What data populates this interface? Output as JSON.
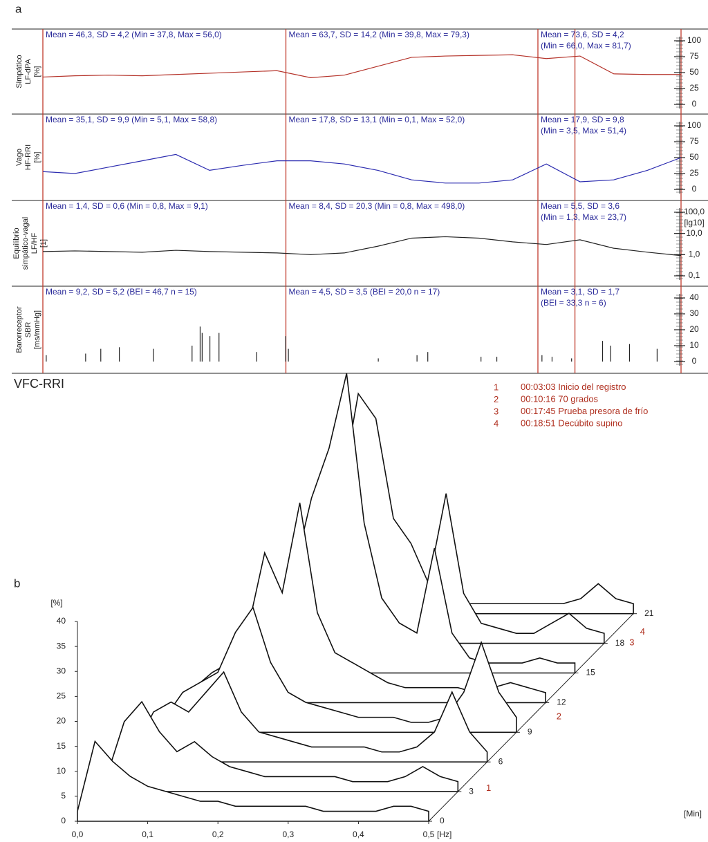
{
  "panel_a_label": "a",
  "panel_b_label": "b",
  "spectrum_title": "VFC-RRI",
  "events": [
    {
      "number": 1,
      "time": "00:03:03",
      "text": "Inicio del registro"
    },
    {
      "number": 2,
      "time": "00:10:16",
      "text": "70 grados"
    },
    {
      "number": 3,
      "time": "00:17:45",
      "text": "Prueba presora de frío"
    },
    {
      "number": 4,
      "time": "00:18:51",
      "text": "Decúbito supino"
    }
  ],
  "chart_data": [
    {
      "type": "line",
      "ylabel": [
        "Simpático",
        "LF-dPA",
        "[%]"
      ],
      "color": "#b5332a",
      "stats": [
        [
          "Mean = 46,3, SD = 4,2 (Min = 37,8, Max = 56,0)"
        ],
        [
          "Mean = 63,7, SD = 14,2 (Min = 39,8, Max = 79,3)"
        ],
        [
          "Mean = 73,6, SD = 4,2",
          "(Min = 66,0, Max = 81,7)"
        ]
      ],
      "xlim": [
        3.05,
        22
      ],
      "x": [
        3,
        4,
        5,
        6,
        7,
        8,
        9,
        10,
        11,
        12,
        13,
        14,
        15,
        16,
        17,
        18,
        19,
        20,
        21,
        22
      ],
      "values": [
        43,
        45,
        46,
        45,
        47,
        49,
        51,
        53,
        42,
        46,
        60,
        74,
        76,
        77,
        78,
        72,
        76,
        48,
        47,
        47
      ],
      "ylim": [
        0,
        100
      ],
      "yticks": [
        0,
        25,
        50,
        75,
        100
      ]
    },
    {
      "type": "line",
      "ylabel": [
        "Vago",
        "HF-RRI",
        "[%]"
      ],
      "color": "#2c2cb0",
      "stats": [
        [
          "Mean = 35,1, SD = 9,9 (Min = 5,1, Max = 58,8)"
        ],
        [
          "Mean = 17,8, SD = 13,1 (Min = 0,1, Max = 52,0)"
        ],
        [
          "Mean = 17,9, SD = 9,8",
          "(Min = 3,5, Max = 51,4)"
        ]
      ],
      "xlim": [
        3.05,
        22
      ],
      "x": [
        3,
        4,
        5,
        6,
        7,
        8,
        9,
        10,
        11,
        12,
        13,
        14,
        15,
        16,
        17,
        18,
        19,
        20,
        21,
        22
      ],
      "values": [
        28,
        25,
        35,
        45,
        55,
        30,
        38,
        45,
        45,
        40,
        30,
        15,
        10,
        10,
        15,
        40,
        12,
        15,
        30,
        50
      ],
      "ylim": [
        0,
        100
      ],
      "yticks": [
        0,
        25,
        50,
        75,
        100
      ]
    },
    {
      "type": "line",
      "log": true,
      "ylabel": [
        "Equilibrio",
        "simpático-vagal",
        "LF/HF",
        "[1]"
      ],
      "yunit": "[lg10]",
      "color": "#222222",
      "stats": [
        [
          "Mean = 1,4, SD = 0,6 (Min = 0,8, Max = 9,1)"
        ],
        [
          "Mean = 8,4, SD = 20,3 (Min = 0,8, Max = 498,0)"
        ],
        [
          "Mean = 5,5, SD = 3,6",
          "(Min = 1,3, Max = 23,7)"
        ]
      ],
      "xlim": [
        3.05,
        22
      ],
      "x": [
        3,
        4,
        5,
        6,
        7,
        8,
        9,
        10,
        11,
        12,
        13,
        14,
        15,
        16,
        17,
        18,
        19,
        20,
        21,
        22
      ],
      "values": [
        1.4,
        1.5,
        1.4,
        1.3,
        1.6,
        1.4,
        1.3,
        1.2,
        1.0,
        1.2,
        2.5,
        6,
        7,
        6,
        4,
        3,
        5,
        2,
        1.3,
        0.9
      ],
      "ylim": [
        0.1,
        100
      ],
      "yticks": [
        {
          "value": 0.1,
          "label": "0,1"
        },
        {
          "value": 1,
          "label": "1,0"
        },
        {
          "value": 10,
          "label": "10,0"
        },
        {
          "value": 100,
          "label": "100,0"
        }
      ]
    },
    {
      "type": "stem",
      "ylabel": [
        "Barorreceptor",
        "SBR",
        "[ms/mmHg]"
      ],
      "color": "#222222",
      "stats": [
        [
          "Mean = 9,2, SD = 5,2 (BEI = 46,7 n = 15)"
        ],
        [
          "Mean = 4,5, SD = 3,5 (BEI = 20,0 n = 17)"
        ],
        [
          "Mean = 3,1, SD = 1,7",
          "(BEI = 33,3 n = 6)"
        ]
      ],
      "xlim": [
        3.05,
        22
      ],
      "x": [
        3.15,
        4.32,
        4.77,
        5.32,
        6.33,
        7.48,
        7.72,
        7.78,
        8.01,
        8.28,
        9.4,
        10.26,
        10.34,
        13.01,
        14.16,
        14.48,
        16.06,
        16.53,
        17.87,
        18.17,
        18.75,
        19.67,
        19.91,
        20.47,
        21.29
      ],
      "values": [
        4,
        5,
        8,
        9,
        8,
        10,
        22,
        18,
        16,
        18,
        6,
        16,
        8,
        2,
        4,
        6,
        3,
        3,
        4,
        3,
        2,
        13,
        10,
        11,
        8
      ],
      "ylim": [
        0,
        40
      ],
      "yticks": [
        0,
        10,
        20,
        30,
        40
      ]
    },
    {
      "type": "waterfall",
      "xlabel": "[Hz]",
      "ylabel": "[%]",
      "zlabel": "[Min]",
      "x": [
        0,
        0.025,
        0.05,
        0.075,
        0.1,
        0.125,
        0.15,
        0.175,
        0.2,
        0.225,
        0.25,
        0.275,
        0.3,
        0.325,
        0.35,
        0.375,
        0.4,
        0.425,
        0.45,
        0.475,
        0.5
      ],
      "xlim": [
        0,
        0.5
      ],
      "xticks": [
        {
          "value": 0,
          "label": "0,0"
        },
        {
          "value": 0.1,
          "label": "0,1"
        },
        {
          "value": 0.2,
          "label": "0,2"
        },
        {
          "value": 0.3,
          "label": "0,3"
        },
        {
          "value": 0.4,
          "label": "0,4"
        },
        {
          "value": 0.5,
          "label": "0,5"
        }
      ],
      "ylim": [
        0,
        40
      ],
      "yticks": [
        0,
        5,
        10,
        15,
        20,
        25,
        30,
        35,
        40
      ],
      "zticks": [
        0,
        3,
        6,
        9,
        12,
        15,
        18,
        21
      ],
      "series": [
        {
          "time": 0,
          "values": [
            2,
            16,
            12,
            9,
            7,
            6,
            5,
            4,
            4,
            3,
            3,
            3,
            3,
            3,
            2,
            2,
            2,
            2,
            3,
            3,
            2
          ]
        },
        {
          "time": 3,
          "values": [
            3,
            14,
            18,
            12,
            8,
            10,
            7,
            5,
            4,
            3,
            3,
            3,
            3,
            3,
            2,
            2,
            2,
            3,
            5,
            3,
            2
          ]
        },
        {
          "time": 6,
          "values": [
            3,
            10,
            12,
            10,
            14,
            18,
            10,
            6,
            5,
            4,
            3,
            3,
            3,
            3,
            2,
            2,
            3,
            6,
            14,
            6,
            2
          ]
        },
        {
          "time": 9,
          "values": [
            3,
            8,
            10,
            12,
            20,
            25,
            14,
            8,
            6,
            5,
            4,
            3,
            3,
            3,
            2,
            2,
            3,
            8,
            18,
            8,
            3
          ]
        },
        {
          "time": 12,
          "values": [
            3,
            6,
            8,
            14,
            30,
            22,
            40,
            18,
            10,
            8,
            6,
            4,
            3,
            3,
            3,
            3,
            2,
            3,
            4,
            3,
            2
          ]
        },
        {
          "time": 15,
          "values": [
            2,
            5,
            6,
            10,
            20,
            35,
            45,
            60,
            30,
            15,
            10,
            8,
            25,
            8,
            3,
            2,
            2,
            2,
            3,
            2,
            2
          ]
        },
        {
          "time": 18,
          "values": [
            2,
            4,
            5,
            8,
            15,
            30,
            50,
            45,
            25,
            20,
            12,
            30,
            10,
            4,
            3,
            2,
            2,
            4,
            6,
            3,
            2
          ]
        },
        {
          "time": 21,
          "values": [
            2,
            3,
            4,
            5,
            6,
            5,
            4,
            3,
            3,
            2,
            2,
            2,
            2,
            2,
            2,
            2,
            2,
            3,
            6,
            3,
            2
          ]
        }
      ]
    }
  ]
}
